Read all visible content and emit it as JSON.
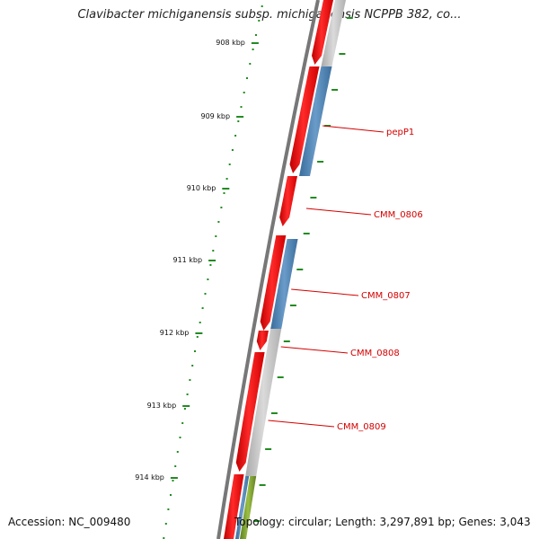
{
  "header": {
    "title": "Clavibacter michiganensis subsp. michiganensis NCPPB 382, co..."
  },
  "footer": {
    "accession": "Accession: NC_009480",
    "topology": "Topology: circular; Length: 3,297,891 bp; Genes: 3,043"
  },
  "map": {
    "ticks": [
      {
        "label": "908 kbp",
        "kbp": 908
      },
      {
        "label": "909 kbp",
        "kbp": 909
      },
      {
        "label": "910 kbp",
        "kbp": 910
      },
      {
        "label": "911 kbp",
        "kbp": 911
      },
      {
        "label": "912 kbp",
        "kbp": 912
      },
      {
        "label": "913 kbp",
        "kbp": 913
      },
      {
        "label": "914 kbp",
        "kbp": 914
      }
    ],
    "genes": [
      {
        "name": "pepP1"
      },
      {
        "name": "CMM_0806"
      },
      {
        "name": "CMM_0807"
      },
      {
        "name": "CMM_0808"
      },
      {
        "name": "CMM_0809"
      }
    ],
    "colors": {
      "cds_forward": "#ff0000",
      "cds_reverse_blue": "#4f83b5",
      "cds_gray": "#c4c4c4",
      "cds_green": "#7a9e2e",
      "backbone": "#777777",
      "ticks": "#228b22",
      "gene_label": "#d40000"
    }
  }
}
